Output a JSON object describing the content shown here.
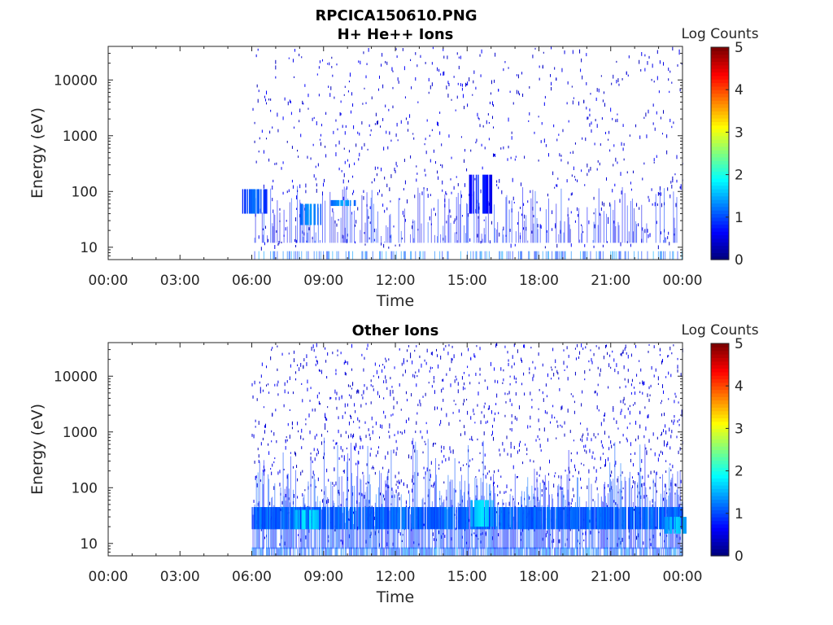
{
  "figure": {
    "filename_title": "RPCICA150610.PNG"
  },
  "chart_data": [
    {
      "type": "heatmap",
      "title": "H+ He++ Ions",
      "xlabel": "Time",
      "ylabel": "Energy (eV)",
      "x_ticks": [
        "00:00",
        "03:00",
        "06:00",
        "09:00",
        "12:00",
        "15:00",
        "18:00",
        "21:00",
        "00:00"
      ],
      "x_range_hours": [
        0,
        24
      ],
      "y_scale": "log",
      "y_ticks": [
        10,
        100,
        1000,
        10000
      ],
      "y_tick_labels": [
        "10",
        "100",
        "1000",
        "10000"
      ],
      "y_range": [
        6,
        40000
      ],
      "data_start_hour": 6,
      "colorbar": {
        "label": "Log Counts",
        "range": [
          0,
          5
        ],
        "ticks": [
          "0",
          "1",
          "2",
          "3",
          "4",
          "5"
        ],
        "colormap": "jet"
      },
      "density": "sparse",
      "hotspots": [
        {
          "hour": 6.1,
          "energy_range": [
            40,
            110
          ],
          "level": 1.2
        },
        {
          "hour": 8.4,
          "energy_range": [
            25,
            60
          ],
          "level": 1.4
        },
        {
          "hour": 9.8,
          "energy_range": [
            55,
            70
          ],
          "level": 1.5
        },
        {
          "hour": 15.5,
          "energy_range": [
            40,
            200
          ],
          "level": 0.9
        }
      ]
    },
    {
      "type": "heatmap",
      "title": "Other Ions",
      "xlabel": "Time",
      "ylabel": "Energy (eV)",
      "x_ticks": [
        "00:00",
        "03:00",
        "06:00",
        "09:00",
        "12:00",
        "15:00",
        "18:00",
        "21:00",
        "00:00"
      ],
      "x_range_hours": [
        0,
        24
      ],
      "y_scale": "log",
      "y_ticks": [
        10,
        100,
        1000,
        10000
      ],
      "y_tick_labels": [
        "10",
        "100",
        "1000",
        "10000"
      ],
      "y_range": [
        6,
        40000
      ],
      "data_start_hour": 6,
      "colorbar": {
        "label": "Log Counts",
        "range": [
          0,
          5
        ],
        "ticks": [
          "0",
          "1",
          "2",
          "3",
          "4",
          "5"
        ],
        "colormap": "jet"
      },
      "density": "dense",
      "band": {
        "energy_range": [
          18,
          45
        ],
        "level": 1.1
      },
      "hotspots": [
        {
          "hour": 8.3,
          "energy_range": [
            18,
            40
          ],
          "level": 1.9
        },
        {
          "hour": 15.6,
          "energy_range": [
            20,
            60
          ],
          "level": 1.8
        },
        {
          "hour": 23.7,
          "energy_range": [
            15,
            30
          ],
          "level": 1.7
        }
      ]
    }
  ]
}
